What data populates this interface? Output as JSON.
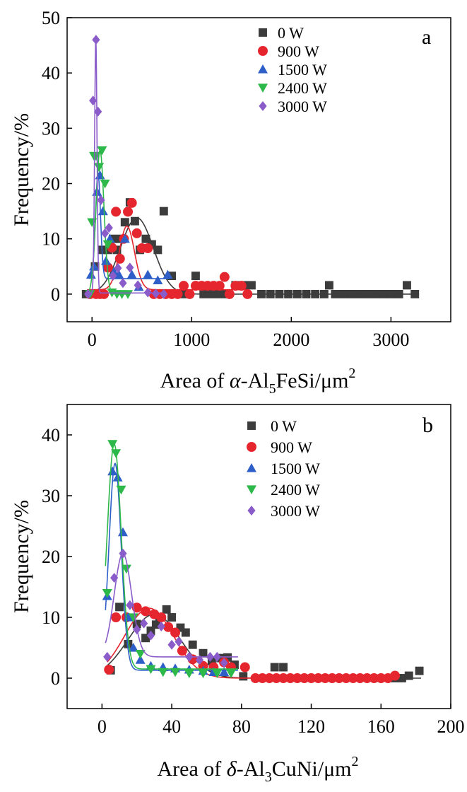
{
  "colors": {
    "0 W": "#3c3c3c",
    "900 W": "#e6262e",
    "1500 W": "#2e5fc9",
    "2400 W": "#2db84a",
    "3000 W": "#8a5cc9"
  },
  "chart_data": [
    {
      "type": "scatter",
      "panel_label": "a",
      "xlabel": {
        "prefix": "Area of ",
        "greek": "α",
        "mid": "-Al",
        "sub": "5",
        "rest": "FeSi/μm",
        "sup": "2"
      },
      "ylabel": "Frequency/%",
      "xlim": [
        -250,
        3600
      ],
      "ylim": [
        -5,
        50
      ],
      "xticks": [
        0,
        1000,
        2000,
        3000
      ],
      "yticks": [
        0,
        10,
        20,
        30,
        40,
        50
      ],
      "grid": false,
      "legend_position": "top-right",
      "series": [
        {
          "name": "0 W",
          "marker": "square",
          "points": [
            [
              -60,
              0
            ],
            [
              30,
              5
            ],
            [
              100,
              8
            ],
            [
              160,
              8
            ],
            [
              210,
              10
            ],
            [
              250,
              8
            ],
            [
              290,
              10
            ],
            [
              330,
              13
            ],
            [
              380,
              16.6
            ],
            [
              430,
              13.2
            ],
            [
              480,
              8
            ],
            [
              540,
              10
            ],
            [
              600,
              9
            ],
            [
              660,
              8
            ],
            [
              720,
              15
            ],
            [
              800,
              3.3
            ],
            [
              880,
              0
            ],
            [
              960,
              0
            ],
            [
              1040,
              3.3
            ],
            [
              1120,
              0
            ],
            [
              1200,
              0
            ],
            [
              1280,
              0
            ],
            [
              1360,
              0
            ],
            [
              1440,
              1.6
            ],
            [
              1520,
              1.6
            ],
            [
              1600,
              1.6
            ],
            [
              1700,
              0
            ],
            [
              1790,
              0
            ],
            [
              1880,
              0
            ],
            [
              1970,
              0
            ],
            [
              2060,
              0
            ],
            [
              2150,
              0
            ],
            [
              2240,
              0
            ],
            [
              2330,
              0
            ],
            [
              2380,
              1.6
            ],
            [
              2440,
              0
            ],
            [
              2520,
              0
            ],
            [
              2600,
              0
            ],
            [
              2680,
              0
            ],
            [
              2760,
              0
            ],
            [
              2840,
              0
            ],
            [
              2920,
              0
            ],
            [
              3000,
              0
            ],
            [
              3080,
              0
            ],
            [
              3160,
              1.6
            ],
            [
              3240,
              0
            ]
          ],
          "fit": {
            "type": "gauss",
            "y0": 0,
            "xc": 450,
            "w": 330,
            "A": 13.8,
            "range": [
              -100,
              3280
            ]
          }
        },
        {
          "name": "900 W",
          "marker": "circle",
          "points": [
            [
              -20,
              0
            ],
            [
              40,
              0
            ],
            [
              80,
              0
            ],
            [
              120,
              0
            ],
            [
              160,
              4.8
            ],
            [
              200,
              8.4
            ],
            [
              240,
              14.9
            ],
            [
              280,
              6.4
            ],
            [
              320,
              10
            ],
            [
              360,
              14.9
            ],
            [
              400,
              16.5
            ],
            [
              450,
              11
            ],
            [
              500,
              8.3
            ],
            [
              560,
              8.3
            ],
            [
              620,
              0
            ],
            [
              680,
              0
            ],
            [
              740,
              0
            ],
            [
              800,
              0
            ],
            [
              860,
              0
            ],
            [
              920,
              1.5
            ],
            [
              980,
              0
            ],
            [
              1040,
              1.5
            ],
            [
              1100,
              1.5
            ],
            [
              1160,
              1.5
            ],
            [
              1220,
              1.5
            ],
            [
              1280,
              1.5
            ],
            [
              1330,
              3.1
            ],
            [
              1380,
              0
            ],
            [
              1440,
              1.5
            ],
            [
              1500,
              1.5
            ],
            [
              1560,
              0
            ]
          ],
          "fit": {
            "type": "gauss",
            "y0": 0.8,
            "xc": 350,
            "w": 150,
            "A": 11.5,
            "range": [
              -50,
              1560
            ]
          }
        },
        {
          "name": "1500 W",
          "marker": "triangle-up",
          "points": [
            [
              -10,
              3.5
            ],
            [
              20,
              5
            ],
            [
              50,
              18.5
            ],
            [
              80,
              21.5
            ],
            [
              110,
              15
            ],
            [
              140,
              6
            ],
            [
              180,
              10
            ],
            [
              220,
              4
            ],
            [
              270,
              3.5
            ],
            [
              330,
              10
            ],
            [
              400,
              3.5
            ],
            [
              470,
              1.3
            ],
            [
              560,
              3.5
            ],
            [
              660,
              2.5
            ],
            [
              760,
              3.5
            ]
          ],
          "fit": {
            "type": "gauss",
            "y0": 2.8,
            "xc": 60,
            "w": 50,
            "A": 19,
            "range": [
              -30,
              780
            ]
          }
        },
        {
          "name": "2400 W",
          "marker": "triangle-down",
          "points": [
            [
              -20,
              0
            ],
            [
              0,
              13
            ],
            [
              20,
              25
            ],
            [
              40,
              25
            ],
            [
              70,
              23
            ],
            [
              100,
              26
            ],
            [
              130,
              20
            ],
            [
              160,
              9
            ],
            [
              200,
              0.3
            ],
            [
              250,
              0
            ],
            [
              300,
              0
            ],
            [
              360,
              0
            ]
          ],
          "fit": {
            "type": "gauss",
            "y0": 0,
            "xc": 80,
            "w": 80,
            "A": 26,
            "range": [
              -40,
              360
            ]
          }
        },
        {
          "name": "3000 W",
          "marker": "diamond",
          "points": [
            [
              -40,
              0
            ],
            [
              10,
              35
            ],
            [
              40,
              46
            ],
            [
              60,
              33
            ],
            [
              90,
              17
            ],
            [
              130,
              11
            ],
            [
              170,
              12
            ],
            [
              210,
              3.3
            ],
            [
              260,
              4.7
            ],
            [
              310,
              2
            ],
            [
              380,
              4.8
            ],
            [
              460,
              1.6
            ],
            [
              560,
              0.3
            ],
            [
              640,
              0.1
            ],
            [
              720,
              0
            ]
          ],
          "fit": {
            "type": "gauss",
            "y0": 0.2,
            "xc": 38,
            "w": 24,
            "A": 46,
            "range": [
              -60,
              740
            ]
          }
        }
      ]
    },
    {
      "type": "scatter",
      "panel_label": "b",
      "xlabel": {
        "prefix": "Area of ",
        "greek": "δ",
        "mid": "-Al",
        "sub": "3",
        "rest": "CuNi/μm",
        "sup": "2"
      },
      "ylabel": "Frequency/%",
      "xlim": [
        -20,
        200
      ],
      "ylim": [
        -5,
        45
      ],
      "xticks": [
        0,
        40,
        80,
        120,
        160,
        200
      ],
      "yticks": [
        0,
        10,
        20,
        30,
        40
      ],
      "grid": false,
      "legend_position": "top-right",
      "series": [
        {
          "name": "0 W",
          "marker": "square",
          "points": [
            [
              5,
              1.3
            ],
            [
              10,
              11.7
            ],
            [
              15,
              5.6
            ],
            [
              20,
              8.9
            ],
            [
              25,
              6.6
            ],
            [
              28,
              7.8
            ],
            [
              31,
              8.8
            ],
            [
              33,
              10
            ],
            [
              37,
              11.3
            ],
            [
              40,
              10
            ],
            [
              45,
              8.3
            ],
            [
              48,
              7.5
            ],
            [
              52,
              5.5
            ],
            [
              58,
              4.1
            ],
            [
              63,
              2.8
            ],
            [
              68,
              3.3
            ],
            [
              72,
              3.4
            ],
            [
              76,
              2.2
            ],
            [
              81,
              0.3
            ],
            [
              99,
              1.8
            ],
            [
              104,
              1.8
            ],
            [
              168,
              0
            ],
            [
              172,
              0
            ],
            [
              176,
              0.4
            ],
            [
              182,
              1.2
            ]
          ],
          "fit": {
            "type": "gauss",
            "y0": 0,
            "xc": 30,
            "w": 30,
            "A": 10.5,
            "range": [
              3,
              183
            ]
          }
        },
        {
          "name": "900 W",
          "marker": "circle",
          "points": [
            [
              4,
              1.4
            ],
            [
              8,
              10
            ],
            [
              14,
              10
            ],
            [
              20,
              11.6
            ],
            [
              25,
              11
            ],
            [
              30,
              10.5
            ],
            [
              34,
              10
            ],
            [
              38,
              8.4
            ],
            [
              42,
              7.5
            ],
            [
              46,
              4.5
            ],
            [
              52,
              3.1
            ],
            [
              58,
              2
            ],
            [
              64,
              1.8
            ],
            [
              70,
              2.6
            ],
            [
              74,
              1.8
            ],
            [
              82,
              1.8
            ],
            [
              88,
              0
            ],
            [
              92,
              0
            ],
            [
              96,
              0
            ],
            [
              100,
              0
            ],
            [
              104,
              0
            ],
            [
              108,
              0
            ],
            [
              112,
              0
            ],
            [
              116,
              0
            ],
            [
              120,
              0
            ],
            [
              124,
              0
            ],
            [
              128,
              0
            ],
            [
              132,
              0
            ],
            [
              136,
              0
            ],
            [
              140,
              0
            ],
            [
              144,
              0
            ],
            [
              148,
              0
            ],
            [
              152,
              0
            ],
            [
              156,
              0
            ],
            [
              160,
              0
            ],
            [
              164,
              0
            ],
            [
              168,
              0.4
            ]
          ],
          "fit": {
            "type": "gauss",
            "y0": 0,
            "xc": 27,
            "w": 28,
            "A": 11.5,
            "range": [
              3,
              170
            ]
          }
        },
        {
          "name": "1500 W",
          "marker": "triangle-up",
          "points": [
            [
              3,
              13.5
            ],
            [
              6,
              34
            ],
            [
              9,
              33
            ],
            [
              12,
              24
            ],
            [
              15,
              10
            ],
            [
              18,
              5
            ],
            [
              22,
              3
            ],
            [
              28,
              2
            ],
            [
              35,
              1.8
            ],
            [
              42,
              1.6
            ],
            [
              50,
              1.4
            ],
            [
              58,
              1.2
            ],
            [
              64,
              1
            ],
            [
              70,
              1
            ]
          ],
          "fit": {
            "type": "gauss",
            "y0": 1.3,
            "xc": 7.5,
            "w": 7,
            "A": 34,
            "range": [
              2,
              78
            ]
          }
        },
        {
          "name": "2400 W",
          "marker": "triangle-down",
          "points": [
            [
              3,
              14
            ],
            [
              6,
              38.5
            ],
            [
              8,
              37
            ],
            [
              11,
              31
            ],
            [
              14,
              18
            ],
            [
              18,
              10
            ],
            [
              22,
              4
            ],
            [
              28,
              1.5
            ],
            [
              35,
              1
            ],
            [
              42,
              1
            ],
            [
              50,
              0.8
            ],
            [
              58,
              0.8
            ],
            [
              66,
              0.8
            ],
            [
              74,
              0.8
            ]
          ],
          "fit": {
            "type": "gauss",
            "y0": 1.5,
            "xc": 7,
            "w": 8,
            "A": 37,
            "range": [
              2,
              78
            ]
          }
        },
        {
          "name": "3000 W",
          "marker": "diamond",
          "points": [
            [
              3,
              3.5
            ],
            [
              7,
              16.5
            ],
            [
              12,
              20.5
            ],
            [
              16,
              12
            ],
            [
              20,
              8
            ],
            [
              24,
              9
            ],
            [
              28,
              7
            ],
            [
              34,
              8.5
            ],
            [
              40,
              5.5
            ],
            [
              44,
              6
            ],
            [
              50,
              3.5
            ],
            [
              56,
              3
            ],
            [
              62,
              3.5
            ],
            [
              66,
              3.5
            ],
            [
              70,
              2.5
            ]
          ],
          "fit": {
            "type": "gauss",
            "y0": 3.5,
            "xc": 12,
            "w": 10,
            "A": 17,
            "range": [
              2,
              78
            ]
          }
        }
      ]
    }
  ]
}
